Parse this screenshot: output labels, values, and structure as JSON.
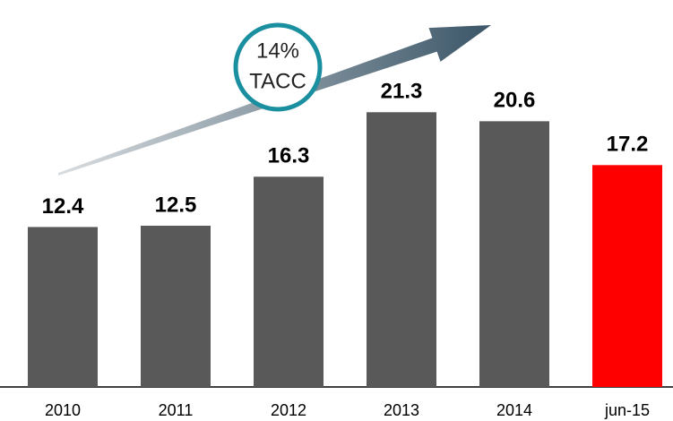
{
  "chart_data": {
    "type": "bar",
    "categories": [
      "2010",
      "2011",
      "2012",
      "2013",
      "2014",
      "jun-15"
    ],
    "values": [
      12.4,
      12.5,
      16.3,
      21.3,
      20.6,
      17.2
    ],
    "colors": [
      "#595959",
      "#595959",
      "#595959",
      "#595959",
      "#595959",
      "#ff0000"
    ],
    "ylim": [
      0,
      30
    ],
    "annotation": [
      "14%",
      "TACC"
    ]
  }
}
